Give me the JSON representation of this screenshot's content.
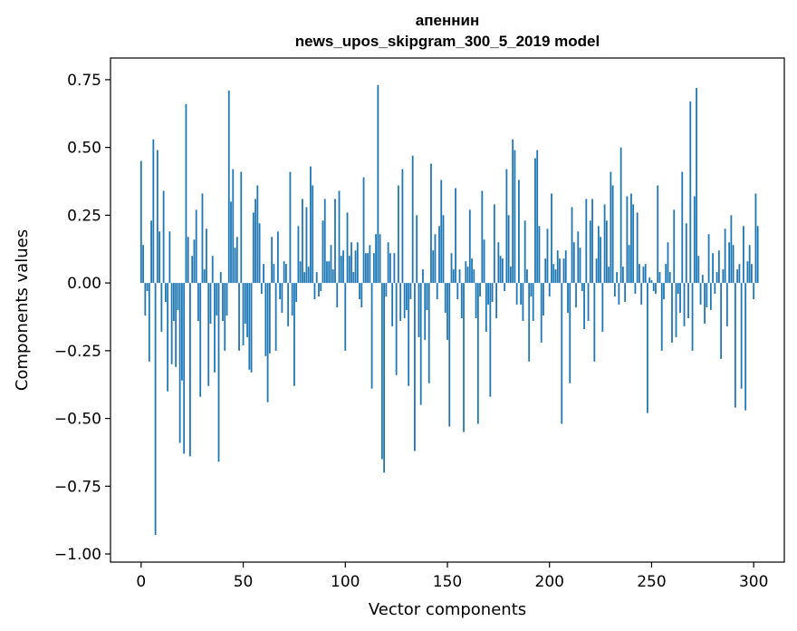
{
  "chart_data": {
    "type": "bar",
    "title_line1": "апеннин",
    "title_line2": "news_upos_skipgram_300_5_2019 model",
    "xlabel": "Vector components",
    "ylabel": "Components values",
    "xlim": [
      -15,
      315
    ],
    "ylim": [
      -1.03,
      0.83
    ],
    "xticks": [
      0,
      50,
      100,
      150,
      200,
      250,
      300
    ],
    "xtick_labels": [
      "0",
      "50",
      "100",
      "150",
      "200",
      "250",
      "300"
    ],
    "yticks": [
      0.75,
      0.5,
      0.25,
      0.0,
      -0.25,
      -0.5,
      -0.75,
      -1.0
    ],
    "ytick_labels": [
      "0.75",
      "0.50",
      "0.25",
      "0.00",
      "−0.25",
      "−0.50",
      "−0.75",
      "−1.00"
    ],
    "bar_color": "#1f77b4",
    "values": [
      0.45,
      0.14,
      -0.12,
      -0.03,
      -0.29,
      0.23,
      0.53,
      -0.93,
      0.49,
      0.19,
      -0.18,
      0.34,
      -0.07,
      -0.4,
      0.19,
      -0.3,
      -0.14,
      -0.31,
      -0.1,
      -0.59,
      -0.36,
      -0.63,
      0.66,
      0.17,
      -0.64,
      0.1,
      0.16,
      0.27,
      -0.14,
      -0.42,
      0.33,
      0.05,
      0.2,
      -0.38,
      -0.15,
      0.1,
      -0.33,
      -0.12,
      -0.66,
      0.04,
      -0.14,
      -0.25,
      -0.12,
      0.71,
      0.3,
      0.42,
      0.13,
      0.17,
      -0.25,
      0.41,
      -0.23,
      -0.15,
      -0.2,
      -0.32,
      -0.33,
      0.26,
      0.31,
      0.36,
      0.22,
      -0.04,
      0.07,
      -0.27,
      -0.44,
      -0.26,
      0.17,
      0.07,
      -0.25,
      0.19,
      -0.06,
      -0.11,
      0.08,
      0.07,
      -0.16,
      0.41,
      -0.12,
      -0.38,
      -0.07,
      0.21,
      0.08,
      0.31,
      0.04,
      0.28,
      0.06,
      0.43,
      0.36,
      -0.06,
      0.04,
      -0.05,
      -0.03,
      0.23,
      0.31,
      0.08,
      0.08,
      0.14,
      0.05,
      0.31,
      -0.09,
      0.34,
      0.1,
      0.12,
      -0.25,
      0.26,
      0.1,
      0.15,
      0.04,
      0.12,
      0.15,
      -0.06,
      -0.09,
      0.39,
      0.11,
      0.11,
      0.14,
      -0.39,
      0.11,
      0.18,
      0.73,
      0.18,
      -0.65,
      -0.7,
      -0.05,
      0.15,
      0.11,
      -0.16,
      0.11,
      -0.34,
      0.36,
      -0.14,
      0.42,
      -0.13,
      -0.1,
      -0.38,
      -0.06,
      0.47,
      -0.62,
      0.25,
      -0.2,
      -0.45,
      0.05,
      -0.21,
      -0.1,
      -0.37,
      0.44,
      0.12,
      0.18,
      -0.06,
      0.21,
      0.38,
      0.25,
      -0.11,
      -0.21,
      -0.53,
      0.11,
      0.05,
      0.35,
      -0.06,
      0.05,
      -0.13,
      -0.55,
      0.08,
      0.06,
      0.27,
      0.09,
      0.05,
      -0.13,
      -0.52,
      -0.05,
      0.34,
      0.16,
      -0.18,
      -0.08,
      -0.42,
      -0.07,
      0.29,
      -0.13,
      0.15,
      0.1,
      0.09,
      -0.03,
      0.42,
      0.25,
      0.06,
      0.53,
      0.49,
      -0.08,
      0.38,
      -0.08,
      -0.14,
      0.23,
      0.05,
      -0.29,
      -0.05,
      -0.14,
      0.46,
      0.49,
      0.21,
      -0.22,
      -0.12,
      0.09,
      0.2,
      -0.05,
      0.33,
      0.07,
      0.05,
      0.12,
      0.09,
      -0.52,
      0.09,
      0.12,
      -0.11,
      -0.37,
      0.28,
      0.15,
      -0.09,
      0.19,
      0.13,
      -0.03,
      -0.17,
      0.31,
      -0.14,
      0.23,
      0.31,
      -0.29,
      0.09,
      0.21,
      0.17,
      -0.18,
      0.29,
      0.23,
      0.06,
      0.41,
      0.36,
      -0.05,
      0.04,
      -0.08,
      0.5,
      0.06,
      -0.07,
      0.32,
      0.14,
      0.33,
      0.29,
      -0.04,
      0.26,
      0.07,
      -0.08,
      0.06,
      0.07,
      -0.48,
      0.02,
      0.01,
      -0.03,
      -0.04,
      0.36,
      0.04,
      -0.25,
      -0.06,
      0.07,
      0.15,
      0.04,
      -0.22,
      0.27,
      -0.2,
      -0.04,
      -0.11,
      0.41,
      -0.16,
      0.22,
      -0.13,
      0.67,
      -0.25,
      0.32,
      0.72,
      0.1,
      -0.08,
      0.03,
      -0.15,
      -0.09,
      0.18,
      -0.1,
      0.11,
      -0.04,
      0.04,
      0.12,
      -0.28,
      0.05,
      0.2,
      -0.16,
      0.15,
      0.25,
      0.14,
      -0.46,
      0.05,
      0.07,
      -0.39,
      0.21,
      -0.47,
      0.08,
      0.14,
      0.07,
      -0.06,
      0.33,
      0.21
    ]
  }
}
